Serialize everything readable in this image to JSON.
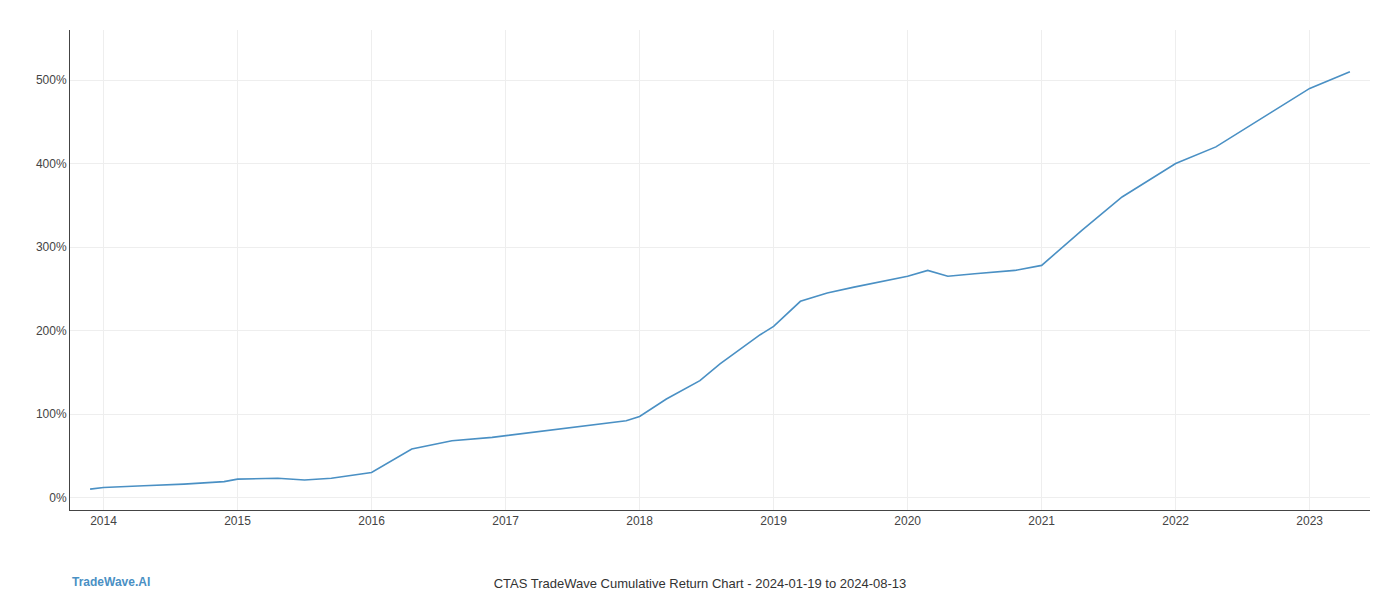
{
  "chart_data": {
    "type": "line",
    "title": "CTAS TradeWave Cumulative Return Chart - 2024-01-19 to 2024-08-13",
    "annotations": [
      "TradeWave.AI"
    ],
    "color": "#4a90c4",
    "grid": true,
    "x": [
      2013.9,
      2014.0,
      2014.3,
      2014.6,
      2014.9,
      2015.0,
      2015.3,
      2015.5,
      2015.7,
      2016.0,
      2016.3,
      2016.6,
      2016.9,
      2017.0,
      2017.3,
      2017.6,
      2017.9,
      2018.0,
      2018.2,
      2018.45,
      2018.6,
      2018.9,
      2019.0,
      2019.2,
      2019.4,
      2019.6,
      2019.9,
      2020.0,
      2020.15,
      2020.3,
      2020.5,
      2020.8,
      2021.0,
      2021.3,
      2021.6,
      2021.9,
      2022.0,
      2022.3,
      2022.6,
      2022.9,
      2023.0,
      2023.3
    ],
    "values": [
      10,
      12,
      14,
      16,
      19,
      22,
      23,
      21,
      23,
      30,
      58,
      68,
      72,
      74,
      80,
      86,
      92,
      97,
      118,
      140,
      160,
      195,
      205,
      235,
      245,
      252,
      262,
      265,
      272,
      265,
      268,
      272,
      278,
      320,
      360,
      390,
      400,
      420,
      450,
      480,
      490,
      510
    ],
    "xlim": [
      2013.75,
      2023.45
    ],
    "ylim": [
      -15,
      560
    ],
    "xticks": [
      2014,
      2015,
      2016,
      2017,
      2018,
      2019,
      2020,
      2021,
      2022,
      2023
    ],
    "yticks": [
      {
        "value": 0,
        "label": "0%"
      },
      {
        "value": 100,
        "label": "100%"
      },
      {
        "value": 200,
        "label": "200%"
      },
      {
        "value": 300,
        "label": "300%"
      },
      {
        "value": 400,
        "label": "400%"
      },
      {
        "value": 500,
        "label": "500%"
      }
    ]
  }
}
